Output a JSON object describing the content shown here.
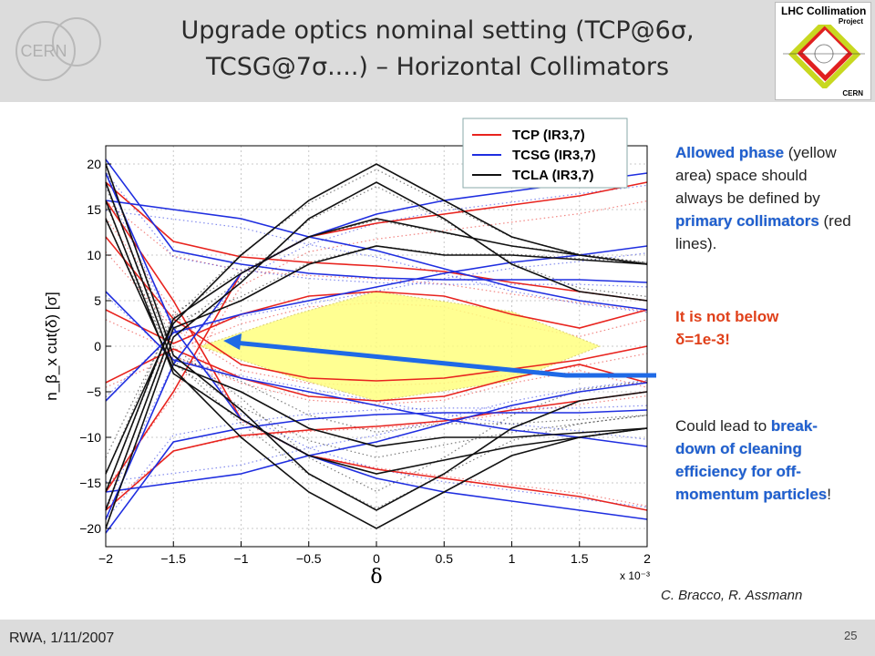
{
  "slide": {
    "title_line1": "Upgrade optics nominal setting (TCP@6σ,",
    "title_line2": "TCSG@7σ....) – Horizontal Collimators",
    "footer_left": "RWA, 1/11/2007",
    "page_number": "25",
    "credit": "C. Bracco, R. Assmann",
    "logo_cern_text": "CERN",
    "logo_lhc_title": "LHC Collimation",
    "logo_lhc_sub": "Project",
    "logo_lhc_bottom": "CERN"
  },
  "notes": {
    "p1_hl": "Allowed phase",
    "p1_a": "(yellow area) space should always be defined by",
    "p1_hl2": "primary collimators",
    "p1_b": "(red lines).",
    "p2_a": "It is not below",
    "p2_b": "δ=1e-3!",
    "p3_a": "Could lead to",
    "p3_hl": "break-down of cleaning efficiency for off-momentum particles",
    "p3_b": "!"
  },
  "chart_data": {
    "type": "line",
    "xlabel": "δ",
    "ylabel": "n_β_x cut(δ) [σ]",
    "x_multiplier": "x 10⁻³",
    "xlim": [
      -2,
      2
    ],
    "ylim": [
      -22,
      22
    ],
    "x_ticks": [
      "−2",
      "−1.5",
      "−1",
      "−0.5",
      "0",
      "0.5",
      "1",
      "1.5",
      "2"
    ],
    "y_ticks": [
      "20",
      "15",
      "10",
      "5",
      "0",
      "−5",
      "−10",
      "−15",
      "−20"
    ],
    "grid": true,
    "legend_position": "top-right",
    "x": [
      -2,
      -1.5,
      -1,
      -0.5,
      0,
      0.5,
      1,
      1.5,
      2
    ],
    "series": [
      {
        "name": "TCP (IR3,7)",
        "color": "#e8231e",
        "lines": [
          [
            18,
            11.5,
            9.8,
            9.2,
            8.8,
            8.2,
            7.0,
            6.0,
            5.0
          ],
          [
            4,
            0.3,
            3.5,
            5.5,
            6.0,
            5.5,
            3.5,
            2.0,
            4.0
          ],
          [
            -4,
            -0.3,
            -3.5,
            -5.5,
            -6.0,
            -5.5,
            -3.5,
            -2.0,
            -4.0
          ],
          [
            -18,
            -11.5,
            -9.8,
            -9.2,
            -8.8,
            -8.2,
            -7.0,
            -6.0,
            -5.0
          ],
          [
            16,
            5,
            -8,
            -12,
            -13.5,
            -14.5,
            -15.5,
            -16.5,
            -18
          ],
          [
            -16,
            -5,
            8,
            12,
            13.5,
            14.5,
            15.5,
            16.5,
            18
          ],
          [
            12,
            3,
            -2,
            -3.5,
            -3.8,
            -3.5,
            -2.5,
            -1.5,
            0
          ]
        ]
      },
      {
        "name": "TCSG (IR3,7)",
        "color": "#1f2ee0",
        "lines": [
          [
            20.5,
            10.5,
            9.0,
            8.0,
            7.5,
            7.3,
            7.3,
            7.3,
            7.0
          ],
          [
            6,
            -1.5,
            -3.5,
            -5.0,
            -6.5,
            -8.0,
            -9.2,
            -10.0,
            -11.0
          ],
          [
            -6,
            1.5,
            3.5,
            5.0,
            6.5,
            8.0,
            9.2,
            10.0,
            11.0
          ],
          [
            -20.5,
            -10.5,
            -9.0,
            -8.0,
            -7.5,
            -7.3,
            -7.3,
            -7.3,
            -7.0
          ],
          [
            19,
            2,
            -8,
            -12,
            -14.5,
            -16,
            -17,
            -18,
            -19
          ],
          [
            -19,
            -2,
            8,
            12,
            14.5,
            16,
            17,
            18,
            19
          ],
          [
            16,
            15,
            14,
            12,
            10.5,
            8.5,
            6.5,
            5.0,
            4.0
          ],
          [
            -16,
            -15,
            -14,
            -12,
            -10.5,
            -8.5,
            -6.5,
            -5.0,
            -4.0
          ]
        ]
      },
      {
        "name": "TCLA (IR3,7)",
        "color": "#111111",
        "lines": [
          [
            -20,
            1,
            7,
            14,
            18,
            14,
            9,
            6,
            5
          ],
          [
            -18,
            2,
            5,
            9,
            11,
            10,
            10,
            9.5,
            9
          ],
          [
            -16,
            3,
            8,
            12,
            14,
            12.5,
            11,
            10,
            9
          ],
          [
            -14,
            2.5,
            10,
            16,
            20,
            16,
            12,
            10,
            9
          ],
          [
            20,
            -1,
            -7,
            -14,
            -18,
            -14,
            -9,
            -6,
            -5
          ],
          [
            18,
            -2,
            -5,
            -9,
            -11,
            -10,
            -10,
            -9.5,
            -9
          ],
          [
            16,
            -3,
            -8,
            -12,
            -14,
            -12.5,
            -11,
            -10,
            -9
          ],
          [
            14,
            -2.5,
            -10,
            -16,
            -20,
            -16,
            -12,
            -10,
            -9
          ]
        ]
      }
    ],
    "allowed_region_polygon": [
      [
        -1.3,
        0
      ],
      [
        -0.6,
        3.5
      ],
      [
        0,
        6
      ],
      [
        1.0,
        3.8
      ],
      [
        1.65,
        0
      ],
      [
        1.0,
        -3.8
      ],
      [
        0,
        -6
      ],
      [
        -0.6,
        -3.5
      ]
    ],
    "allowed_region_color": "#ffff80",
    "arrow_color": "#1f6ae6"
  }
}
